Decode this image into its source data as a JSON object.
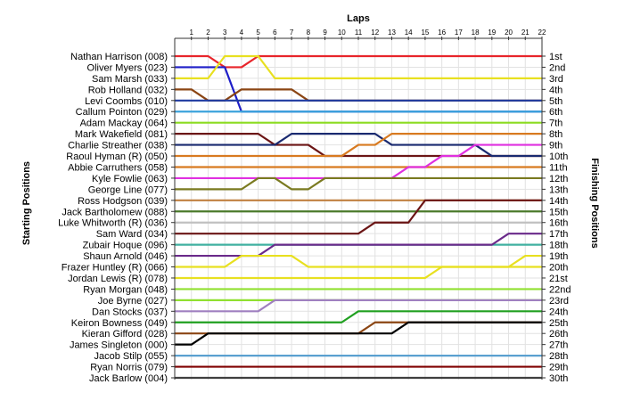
{
  "chart_data": {
    "type": "line",
    "title": "Laps",
    "ylabel_left": "Starting Positions",
    "ylabel_right": "Finishing Positions",
    "x": [
      0,
      1,
      2,
      3,
      4,
      5,
      6,
      7,
      8,
      9,
      10,
      11,
      12,
      13,
      14,
      15,
      16,
      17,
      18,
      19,
      20,
      21,
      22
    ],
    "x_tick_labels": [
      "1",
      "2",
      "3",
      "4",
      "5",
      "6",
      "7",
      "8",
      "9",
      "10",
      "11",
      "12",
      "13",
      "14",
      "15",
      "16",
      "17",
      "18",
      "19",
      "20",
      "21",
      "22"
    ],
    "ylim": [
      1,
      30
    ],
    "grid": true,
    "starting_positions": [
      "Nathan Harrison (008)",
      "Oliver Myers (023)",
      "Sam Marsh (033)",
      "Rob Holland (032)",
      "Levi Coombs (010)",
      "Callum Pointon (029)",
      "Adam Mackay (064)",
      "Mark Wakefield (081)",
      "Charlie Streather (038)",
      "Raoul Hyman  (R) (050)",
      "Abbie Carruthers (058)",
      "Kyle Fowlie (063)",
      "George Line (077)",
      "Ross Hodgson (039)",
      "Jack Bartholomew (088)",
      "Luke Whitworth (R) (036)",
      "Sam Ward (034)",
      "Zubair Hoque (096)",
      "Shaun Arnold (046)",
      "Frazer Huntley (R) (066)",
      "Jordan Lewis (R) (078)",
      "Ryan Morgan (048)",
      "Joe Byrne (027)",
      "Dan Stocks (037)",
      "Keiron Bowness (049)",
      "Kieran Gifford (028)",
      "James Singleton (000)",
      "Jacob Stilp (055)",
      "Ryan Norris (079)",
      "Jack Barlow (004)"
    ],
    "finishing_positions": [
      "1st",
      "2nd",
      "3rd",
      "4th",
      "5th",
      "6th",
      "7th",
      "8th",
      "9th",
      "10th",
      "11th",
      "12th",
      "13th",
      "14th",
      "15th",
      "16th",
      "17th",
      "18th",
      "19th",
      "20th",
      "21st",
      "22nd",
      "23rd",
      "24th",
      "25th",
      "26th",
      "27th",
      "28th",
      "29th",
      "30th"
    ],
    "colors": [
      "#e8252b",
      "#1e1ec8",
      "#e8e020",
      "#8b4513",
      "#1e3aa0",
      "#3ba3dc",
      "#8bdc20",
      "#6b1515",
      "#1a2a70",
      "#d87a20",
      "#d87a20",
      "#e030e0",
      "#7a7a20",
      "#c08040",
      "#4a7a2a",
      "#c0c0c0",
      "#6b1515",
      "#40b0a0",
      "#6a2a8a",
      "#e8e020",
      "#e8e020",
      "#90e030",
      "#90e030",
      "#a080c0",
      "#20a020",
      "#8b4513",
      "#000000",
      "#5aa0d0",
      "#800000",
      "#404040"
    ],
    "series": [
      {
        "name": "Nathan Harrison (008)",
        "values": [
          1,
          1,
          1,
          2,
          2,
          1,
          1,
          1,
          1,
          1,
          1,
          1,
          1,
          1,
          1,
          1,
          1,
          1,
          1,
          1,
          1,
          1,
          1
        ]
      },
      {
        "name": "Oliver Myers (023)",
        "values": [
          2,
          2,
          2,
          2,
          6,
          6,
          6,
          6,
          6,
          6,
          6,
          6,
          6,
          6,
          6,
          6,
          6,
          6,
          6,
          6,
          6,
          6,
          6
        ]
      },
      {
        "name": "Sam Marsh (033)",
        "values": [
          3,
          3,
          3,
          1,
          1,
          1,
          3,
          3,
          3,
          3,
          3,
          3,
          3,
          3,
          3,
          3,
          3,
          3,
          3,
          3,
          3,
          3,
          3
        ]
      },
      {
        "name": "Rob Holland (032)",
        "values": [
          4,
          4,
          5,
          5,
          4,
          4,
          4,
          4,
          5,
          5,
          5,
          5,
          5,
          5,
          5,
          5,
          5,
          5,
          5,
          5,
          5,
          5,
          5
        ]
      },
      {
        "name": "Levi Coombs (010)",
        "values": [
          5,
          5,
          5,
          5,
          5,
          5,
          5,
          5,
          5,
          5,
          5,
          5,
          5,
          5,
          5,
          5,
          5,
          5,
          5,
          5,
          5,
          5,
          5
        ]
      },
      {
        "name": "Callum Pointon (029)",
        "values": [
          6,
          6,
          6,
          6,
          6,
          6,
          6,
          6,
          6,
          6,
          6,
          6,
          6,
          6,
          6,
          6,
          6,
          6,
          6,
          6,
          6,
          6,
          6
        ]
      },
      {
        "name": "Adam Mackay (064)",
        "values": [
          7,
          7,
          7,
          7,
          7,
          7,
          7,
          7,
          7,
          7,
          7,
          7,
          7,
          7,
          7,
          7,
          7,
          7,
          7,
          7,
          7,
          7,
          7
        ]
      },
      {
        "name": "Mark Wakefield (081)",
        "values": [
          8,
          8,
          8,
          8,
          8,
          8,
          9,
          9,
          9,
          10,
          10,
          10,
          10,
          10,
          10,
          10,
          10,
          10,
          10,
          10,
          10,
          10,
          10
        ]
      },
      {
        "name": "Charlie Streather (038)",
        "values": [
          9,
          9,
          9,
          9,
          9,
          9,
          9,
          8,
          8,
          8,
          8,
          8,
          8,
          9,
          9,
          9,
          9,
          9,
          9,
          10,
          10,
          10,
          10
        ]
      },
      {
        "name": "Raoul Hyman  (R) (050)",
        "values": [
          10,
          10,
          10,
          10,
          10,
          10,
          10,
          10,
          10,
          10,
          10,
          9,
          9,
          8,
          8,
          8,
          8,
          8,
          8,
          8,
          8,
          8,
          8
        ]
      },
      {
        "name": "Abbie Carruthers (058)",
        "values": [
          11,
          11,
          11,
          11,
          11,
          11,
          11,
          11,
          11,
          11,
          11,
          11,
          11,
          11,
          11,
          11,
          11,
          11,
          11,
          11,
          11,
          11,
          11
        ]
      },
      {
        "name": "Kyle Fowlie (063)",
        "values": [
          12,
          12,
          12,
          12,
          12,
          12,
          12,
          12,
          12,
          12,
          12,
          12,
          12,
          12,
          11,
          11,
          10,
          10,
          9,
          9,
          9,
          9,
          9
        ]
      },
      {
        "name": "George Line (077)",
        "values": [
          13,
          13,
          13,
          13,
          13,
          12,
          12,
          13,
          13,
          12,
          12,
          12,
          12,
          12,
          12,
          12,
          12,
          12,
          12,
          12,
          12,
          12,
          12
        ]
      },
      {
        "name": "Ross Hodgson (039)",
        "values": [
          14,
          14,
          14,
          14,
          14,
          14,
          14,
          14,
          14,
          14,
          14,
          14,
          14,
          14,
          14,
          14,
          14,
          14,
          14,
          14,
          14,
          14,
          14
        ]
      },
      {
        "name": "Jack Bartholomew (088)",
        "values": [
          15,
          15,
          15,
          15,
          15,
          15,
          15,
          15,
          15,
          15,
          15,
          15,
          15,
          15,
          15,
          15,
          15,
          15,
          15,
          15,
          15,
          15,
          15
        ]
      },
      {
        "name": "Luke Whitworth (R) (036)",
        "values": [
          16,
          16,
          16,
          16,
          16,
          16,
          16,
          16,
          16,
          16,
          16,
          16,
          16,
          16,
          16,
          16,
          16,
          16,
          16,
          16,
          16,
          16,
          16
        ]
      },
      {
        "name": "Sam Ward (034)",
        "values": [
          17,
          17,
          17,
          17,
          17,
          17,
          17,
          17,
          17,
          17,
          17,
          17,
          16,
          16,
          16,
          14,
          14,
          14,
          14,
          14,
          14,
          14,
          14
        ]
      },
      {
        "name": "Zubair Hoque (096)",
        "values": [
          18,
          18,
          18,
          18,
          18,
          18,
          18,
          18,
          18,
          18,
          18,
          18,
          18,
          18,
          18,
          18,
          18,
          18,
          18,
          18,
          18,
          18,
          18
        ]
      },
      {
        "name": "Shaun Arnold (046)",
        "values": [
          19,
          19,
          19,
          19,
          19,
          19,
          18,
          18,
          18,
          18,
          18,
          18,
          18,
          18,
          18,
          18,
          18,
          18,
          18,
          18,
          17,
          17,
          17
        ]
      },
      {
        "name": "Frazer Huntley (R) (066)",
        "values": [
          20,
          20,
          20,
          20,
          19,
          19,
          19,
          19,
          20,
          20,
          20,
          20,
          20,
          20,
          20,
          20,
          20,
          20,
          20,
          20,
          20,
          20,
          20
        ]
      },
      {
        "name": "Jordan Lewis (R) (078)",
        "values": [
          21,
          21,
          21,
          21,
          21,
          21,
          21,
          21,
          21,
          21,
          21,
          21,
          21,
          21,
          21,
          21,
          20,
          20,
          20,
          20,
          20,
          19,
          19
        ]
      },
      {
        "name": "Ryan Morgan (048)",
        "values": [
          22,
          22,
          22,
          22,
          22,
          22,
          22,
          22,
          22,
          22,
          22,
          22,
          22,
          22,
          22,
          22,
          22,
          22,
          22,
          22,
          22,
          22,
          22
        ]
      },
      {
        "name": "Joe Byrne (027)",
        "values": [
          23,
          23,
          23,
          23,
          23,
          23,
          23,
          23,
          23,
          23,
          23,
          23,
          23,
          23,
          23,
          23,
          23,
          23,
          23,
          23,
          23,
          23,
          23
        ]
      },
      {
        "name": "Dan Stocks (037)",
        "values": [
          24,
          24,
          24,
          24,
          24,
          24,
          23,
          23,
          23,
          23,
          23,
          23,
          23,
          23,
          23,
          23,
          23,
          23,
          23,
          23,
          23,
          23,
          23
        ]
      },
      {
        "name": "Keiron Bowness (049)",
        "values": [
          25,
          25,
          25,
          25,
          25,
          25,
          25,
          25,
          25,
          25,
          25,
          24,
          24,
          24,
          24,
          24,
          24,
          24,
          24,
          24,
          24,
          24,
          24
        ]
      },
      {
        "name": "Kieran Gifford (028)",
        "values": [
          26,
          26,
          26,
          26,
          26,
          26,
          26,
          26,
          26,
          26,
          26,
          26,
          25,
          25,
          25,
          25,
          25,
          25,
          25,
          25,
          25,
          25,
          25
        ]
      },
      {
        "name": "James Singleton (000)",
        "values": [
          27,
          27,
          26,
          26,
          26,
          26,
          26,
          26,
          26,
          26,
          26,
          26,
          26,
          26,
          25,
          25,
          25,
          25,
          25,
          25,
          25,
          25,
          25
        ]
      },
      {
        "name": "Jacob Stilp (055)",
        "values": [
          28,
          28,
          28,
          28,
          28,
          28,
          28,
          28,
          28,
          28,
          28,
          28,
          28,
          28,
          28,
          28,
          28,
          28,
          28,
          28,
          28,
          28,
          28
        ]
      },
      {
        "name": "Ryan Norris (079)",
        "values": [
          29,
          29,
          29,
          29,
          29,
          29,
          29,
          29,
          29,
          29,
          29,
          29,
          29,
          29,
          29,
          29,
          29,
          29,
          29,
          29,
          29,
          29,
          29
        ]
      },
      {
        "name": "Jack Barlow (004)",
        "values": [
          30,
          30,
          30,
          30,
          30,
          30,
          30,
          30,
          30,
          30,
          30,
          30,
          30,
          30,
          30,
          30,
          30,
          30,
          30,
          30,
          30,
          30,
          30
        ]
      }
    ]
  }
}
